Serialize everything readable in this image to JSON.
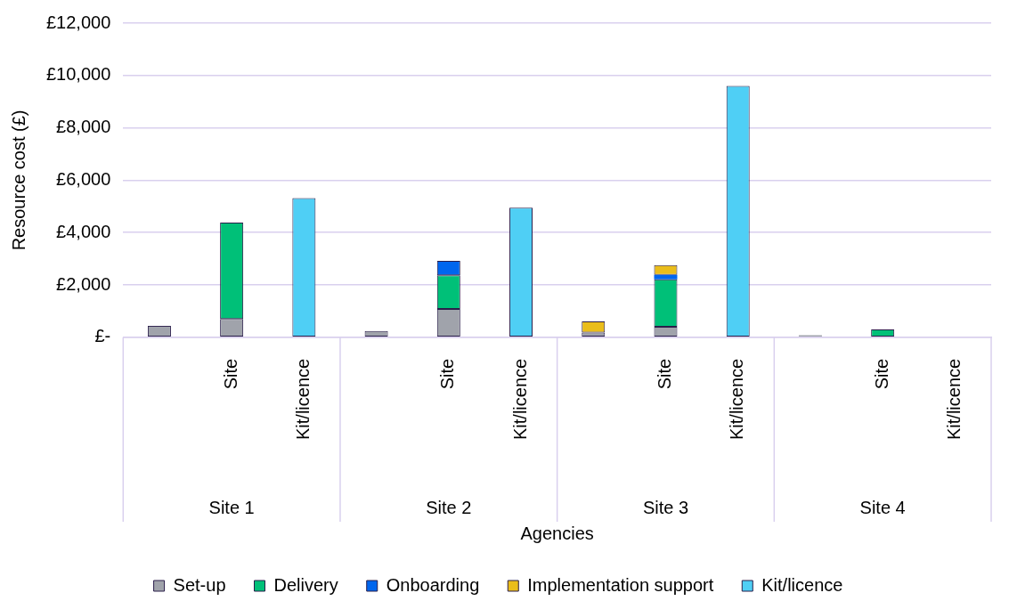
{
  "chart_data": {
    "type": "bar",
    "stacked": true,
    "xlabel": "Agencies",
    "ylabel": "Resource cost (£)",
    "categories": [
      null,
      "Site",
      "Kit/licence",
      null,
      "Site",
      "Kit/licence",
      null,
      "Site",
      "Kit/licence",
      null,
      "Site",
      "Kit/licence"
    ],
    "annotations": [
      "Site 1",
      "Site 2",
      "Site 3",
      "Site 4"
    ],
    "series": [
      {
        "name": "Set-up",
        "color": "#a0a3ab",
        "values": [
          440,
          700,
          null,
          240,
          1080,
          null,
          180,
          400,
          null,
          80,
          null,
          null
        ]
      },
      {
        "name": "Delivery",
        "color": "#00c078",
        "values": [
          null,
          3680,
          null,
          null,
          1290,
          null,
          null,
          1810,
          null,
          null,
          300,
          null
        ]
      },
      {
        "name": "Onboarding",
        "color": "#0066ee",
        "values": [
          null,
          null,
          null,
          null,
          550,
          null,
          null,
          170,
          null,
          null,
          null,
          null
        ]
      },
      {
        "name": "Implementation support",
        "color": "#eabd1a",
        "values": [
          null,
          null,
          null,
          null,
          null,
          null,
          430,
          380,
          null,
          null,
          null,
          null
        ]
      },
      {
        "name": "Kit/licence",
        "color": "#4fcff5",
        "values": [
          null,
          null,
          5320,
          null,
          null,
          4950,
          null,
          null,
          9600,
          null,
          null,
          null
        ]
      }
    ],
    "ylim": [
      0,
      12000
    ],
    "yticks": [
      {
        "value": 0,
        "label": "£-"
      },
      {
        "value": 2000,
        "label": "£2,000"
      },
      {
        "value": 4000,
        "label": "£4,000"
      },
      {
        "value": 6000,
        "label": "£6,000"
      },
      {
        "value": 8000,
        "label": "£8,000"
      },
      {
        "value": 10000,
        "label": "£10,000"
      },
      {
        "value": 12000,
        "label": "£12,000"
      }
    ],
    "grid": "y",
    "legend": "bottom"
  }
}
